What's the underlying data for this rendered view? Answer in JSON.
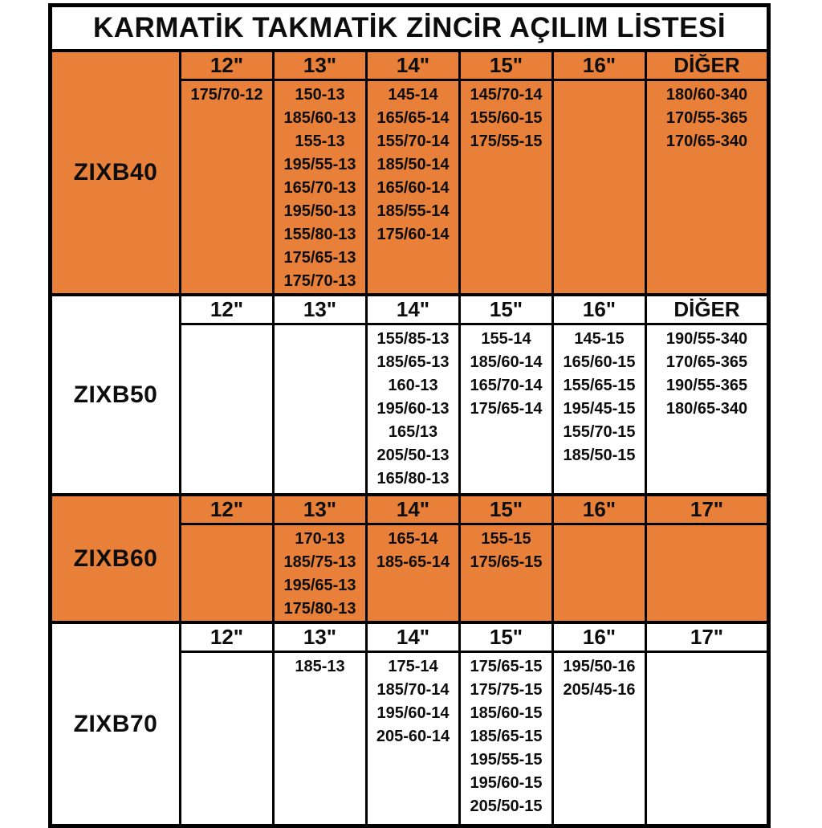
{
  "title": "KARMATİK TAKMATİK ZİNCİR AÇILIM LİSTESİ",
  "colors": {
    "section_orange": "#E8803A",
    "section_white": "#FFFFFF",
    "border": "#000000",
    "text": "#0D0D0D"
  },
  "sections": [
    {
      "label": "ZIXB40",
      "theme": "orange",
      "columns": [
        {
          "header": "12\"",
          "values": [
            "175/70-12"
          ]
        },
        {
          "header": "13\"",
          "values": [
            "150-13",
            "185/60-13",
            "155-13",
            "195/55-13",
            "165/70-13",
            "195/50-13",
            "155/80-13",
            "175/65-13",
            "175/70-13"
          ]
        },
        {
          "header": "14\"",
          "values": [
            "145-14",
            "165/65-14",
            "155/70-14",
            "185/50-14",
            "165/60-14",
            "185/55-14",
            "175/60-14"
          ]
        },
        {
          "header": "15\"",
          "values": [
            "145/70-14",
            "155/60-15",
            "175/55-15"
          ]
        },
        {
          "header": "16\"",
          "values": []
        },
        {
          "header": "DİĞER",
          "values": [
            "180/60-340",
            "170/55-365",
            "170/65-340"
          ]
        }
      ]
    },
    {
      "label": "ZIXB50",
      "theme": "white",
      "columns": [
        {
          "header": "12\"",
          "values": []
        },
        {
          "header": "13\"",
          "values": []
        },
        {
          "header": "14\"",
          "values": [
            "155/85-13",
            "185/65-13",
            "160-13",
            "195/60-13",
            "165/13",
            "205/50-13",
            "165/80-13"
          ]
        },
        {
          "header": "15\"",
          "values": [
            "155-14",
            "185/60-14",
            "165/70-14",
            "175/65-14"
          ]
        },
        {
          "header": "16\"",
          "values": [
            "145-15",
            "165/60-15",
            "155/65-15",
            "195/45-15",
            "155/70-15",
            "185/50-15"
          ]
        },
        {
          "header": "DİĞER",
          "values": [
            "190/55-340",
            "170/65-365",
            "190/55-365",
            "180/65-340"
          ]
        }
      ]
    },
    {
      "label": "ZIXB60",
      "theme": "orange",
      "columns": [
        {
          "header": "12\"",
          "values": []
        },
        {
          "header": "13\"",
          "values": [
            "170-13",
            "185/75-13",
            "195/65-13",
            "175/80-13"
          ]
        },
        {
          "header": "14\"",
          "values": [
            "165-14",
            "185-65-14"
          ]
        },
        {
          "header": "15\"",
          "values": [
            "155-15",
            "175/65-15"
          ]
        },
        {
          "header": "16\"",
          "values": []
        },
        {
          "header": "17\"",
          "values": []
        }
      ]
    },
    {
      "label": "ZIXB70",
      "theme": "white",
      "columns": [
        {
          "header": "12\"",
          "values": []
        },
        {
          "header": "13\"",
          "values": [
            "185-13"
          ]
        },
        {
          "header": "14\"",
          "values": [
            "175-14",
            "185/70-14",
            "195/60-14",
            "205-60-14"
          ]
        },
        {
          "header": "15\"",
          "values": [
            "175/65-15",
            "175/75-15",
            "185/60-15",
            "185/65-15",
            "195/55-15",
            "195/60-15",
            "205/50-15"
          ]
        },
        {
          "header": "16\"",
          "values": [
            "195/50-16",
            "205/45-16"
          ]
        },
        {
          "header": "17\"",
          "values": []
        }
      ]
    }
  ]
}
